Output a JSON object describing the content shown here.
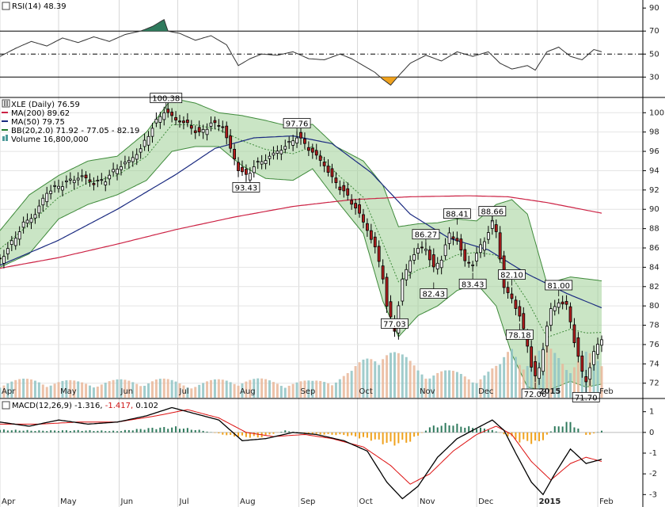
{
  "chart_data": {
    "type": "stock",
    "symbol_label": "XLE (Daily) 76.59",
    "price_axis": {
      "min": 70.5,
      "max": 101.5,
      "ticks": [
        72,
        74,
        76,
        78,
        80,
        82,
        84,
        86,
        88,
        90,
        92,
        94,
        96,
        98,
        100
      ]
    },
    "months": [
      {
        "label": "Apr",
        "day": 0
      },
      {
        "label": "May",
        "day": 30
      },
      {
        "label": "Jun",
        "day": 61
      },
      {
        "label": "Jul",
        "day": 91
      },
      {
        "label": "Aug",
        "day": 122
      },
      {
        "label": "Sep",
        "day": 153
      },
      {
        "label": "Oct",
        "day": 183
      },
      {
        "label": "Nov",
        "day": 214
      },
      {
        "label": "Dec",
        "day": 244
      },
      {
        "label": "2015",
        "day": 275
      },
      {
        "label": "Feb",
        "day": 306
      }
    ],
    "day_range": [
      0,
      302
    ],
    "price_path": [
      [
        0,
        84.8
      ],
      [
        6,
        86.5
      ],
      [
        12,
        88.5
      ],
      [
        18,
        89.5
      ],
      [
        24,
        91.8
      ],
      [
        30,
        92.4
      ],
      [
        36,
        93.0
      ],
      [
        42,
        93.4
      ],
      [
        48,
        92.7
      ],
      [
        54,
        93.1
      ],
      [
        60,
        94.3
      ],
      [
        66,
        95.0
      ],
      [
        72,
        96.2
      ],
      [
        78,
        98.5
      ],
      [
        84,
        100.2
      ],
      [
        90,
        99.3
      ],
      [
        96,
        98.8
      ],
      [
        102,
        97.8
      ],
      [
        108,
        98.9
      ],
      [
        114,
        98.6
      ],
      [
        118,
        96.2
      ],
      [
        122,
        94.2
      ],
      [
        126,
        93.4
      ],
      [
        130,
        94.5
      ],
      [
        136,
        95.2
      ],
      [
        142,
        96.0
      ],
      [
        148,
        96.8
      ],
      [
        152,
        97.6
      ],
      [
        158,
        96.3
      ],
      [
        162,
        95.5
      ],
      [
        166,
        94.6
      ],
      [
        170,
        93.2
      ],
      [
        176,
        91.8
      ],
      [
        182,
        90.2
      ],
      [
        188,
        87.9
      ],
      [
        192,
        86.0
      ],
      [
        196,
        83.0
      ],
      [
        198,
        80.0
      ],
      [
        200,
        78.6
      ],
      [
        202,
        77.5
      ],
      [
        204,
        80.2
      ],
      [
        206,
        82.6
      ],
      [
        210,
        84.8
      ],
      [
        214,
        85.9
      ],
      [
        218,
        86.0
      ],
      [
        222,
        83.8
      ],
      [
        226,
        85.0
      ],
      [
        230,
        87.4
      ],
      [
        234,
        86.8
      ],
      [
        238,
        84.6
      ],
      [
        242,
        84.4
      ],
      [
        246,
        86.2
      ],
      [
        250,
        87.6
      ],
      [
        252,
        88.6
      ],
      [
        254,
        87.8
      ],
      [
        256,
        85.0
      ],
      [
        258,
        81.8
      ],
      [
        262,
        80.8
      ],
      [
        266,
        78.9
      ],
      [
        270,
        76.0
      ],
      [
        272,
        73.8
      ],
      [
        274,
        72.5
      ],
      [
        276,
        73.6
      ],
      [
        280,
        77.8
      ],
      [
        282,
        79.6
      ],
      [
        286,
        80.4
      ],
      [
        290,
        80.0
      ],
      [
        292,
        78.4
      ],
      [
        294,
        76.4
      ],
      [
        296,
        74.6
      ],
      [
        298,
        73.1
      ],
      [
        300,
        72.4
      ],
      [
        302,
        73.6
      ],
      [
        304,
        75.1
      ],
      [
        306,
        76.1
      ],
      [
        308,
        76.6
      ]
    ],
    "callouts": [
      {
        "label": "100.38",
        "day": 85,
        "value": 100.38,
        "pos": "above"
      },
      {
        "label": "97.76",
        "day": 152,
        "value": 97.76,
        "pos": "above"
      },
      {
        "label": "93.43",
        "day": 126,
        "value": 93.43,
        "pos": "below"
      },
      {
        "label": "77.03",
        "day": 202,
        "value": 77.03,
        "pos": "above"
      },
      {
        "label": "86.27",
        "day": 218,
        "value": 86.27,
        "pos": "above"
      },
      {
        "label": "82.43",
        "day": 222,
        "value": 82.43,
        "pos": "below"
      },
      {
        "label": "88.41",
        "day": 234,
        "value": 88.41,
        "pos": "above"
      },
      {
        "label": "83.43",
        "day": 242,
        "value": 83.43,
        "pos": "below"
      },
      {
        "label": "88.66",
        "day": 252,
        "value": 88.66,
        "pos": "above"
      },
      {
        "label": "82.10",
        "day": 262,
        "value": 82.1,
        "pos": "above"
      },
      {
        "label": "78.18",
        "day": 266,
        "value": 78.18,
        "pos": "below"
      },
      {
        "label": "81.00",
        "day": 286,
        "value": 81.0,
        "pos": "above"
      },
      {
        "label": "72.06",
        "day": 274,
        "value": 72.06,
        "pos": "below"
      },
      {
        "label": "71.70",
        "day": 300,
        "value": 71.7,
        "pos": "below"
      }
    ],
    "ma200": [
      [
        0,
        83.9
      ],
      [
        30,
        85.0
      ],
      [
        60,
        86.4
      ],
      [
        90,
        87.9
      ],
      [
        120,
        89.2
      ],
      [
        150,
        90.3
      ],
      [
        180,
        91.0
      ],
      [
        210,
        91.3
      ],
      [
        240,
        91.4
      ],
      [
        260,
        91.3
      ],
      [
        280,
        90.7
      ],
      [
        308,
        89.6
      ]
    ],
    "ma50": [
      [
        0,
        84.2
      ],
      [
        30,
        86.8
      ],
      [
        60,
        90.0
      ],
      [
        90,
        93.6
      ],
      [
        110,
        96.3
      ],
      [
        130,
        97.4
      ],
      [
        150,
        97.6
      ],
      [
        170,
        96.8
      ],
      [
        190,
        93.8
      ],
      [
        210,
        89.5
      ],
      [
        230,
        87.0
      ],
      [
        250,
        85.8
      ],
      [
        270,
        83.3
      ],
      [
        290,
        81.3
      ],
      [
        308,
        79.8
      ]
    ],
    "bb_upper": [
      [
        0,
        87.8
      ],
      [
        15,
        91.5
      ],
      [
        30,
        93.5
      ],
      [
        45,
        95.0
      ],
      [
        60,
        95.5
      ],
      [
        75,
        98.0
      ],
      [
        88,
        101.5
      ],
      [
        100,
        101.0
      ],
      [
        112,
        100.0
      ],
      [
        124,
        99.7
      ],
      [
        136,
        99.2
      ],
      [
        150,
        98.5
      ],
      [
        160,
        98.8
      ],
      [
        172,
        96.5
      ],
      [
        186,
        95.0
      ],
      [
        196,
        92.5
      ],
      [
        204,
        88.2
      ],
      [
        214,
        88.5
      ],
      [
        224,
        88.6
      ],
      [
        234,
        89.0
      ],
      [
        244,
        88.8
      ],
      [
        254,
        90.5
      ],
      [
        262,
        91.0
      ],
      [
        270,
        89.5
      ],
      [
        280,
        82.3
      ],
      [
        292,
        83.0
      ],
      [
        300,
        82.8
      ],
      [
        308,
        82.6
      ]
    ],
    "bb_lower": [
      [
        0,
        84.0
      ],
      [
        15,
        85.4
      ],
      [
        30,
        89.0
      ],
      [
        45,
        90.5
      ],
      [
        60,
        91.5
      ],
      [
        75,
        93.0
      ],
      [
        88,
        96.0
      ],
      [
        100,
        96.5
      ],
      [
        112,
        96.5
      ],
      [
        124,
        94.5
      ],
      [
        136,
        93.2
      ],
      [
        150,
        93.0
      ],
      [
        160,
        94.2
      ],
      [
        172,
        91.0
      ],
      [
        186,
        87.5
      ],
      [
        196,
        80.5
      ],
      [
        204,
        76.8
      ],
      [
        214,
        79.0
      ],
      [
        224,
        80.0
      ],
      [
        234,
        81.6
      ],
      [
        244,
        82.3
      ],
      [
        254,
        80.0
      ],
      [
        262,
        75.0
      ],
      [
        270,
        71.6
      ],
      [
        280,
        71.2
      ],
      [
        292,
        72.2
      ],
      [
        300,
        71.6
      ],
      [
        308,
        71.9
      ]
    ],
    "volume_path": [
      [
        0,
        0.3
      ],
      [
        20,
        0.32
      ],
      [
        40,
        0.28
      ],
      [
        60,
        0.3
      ],
      [
        80,
        0.33
      ],
      [
        100,
        0.25
      ],
      [
        120,
        0.35
      ],
      [
        140,
        0.3
      ],
      [
        160,
        0.28
      ],
      [
        180,
        0.45
      ],
      [
        196,
        1.0
      ],
      [
        204,
        0.75
      ],
      [
        214,
        0.55
      ],
      [
        230,
        0.45
      ],
      [
        244,
        0.4
      ],
      [
        256,
        0.55
      ],
      [
        262,
        0.95
      ],
      [
        270,
        0.75
      ],
      [
        280,
        0.85
      ],
      [
        290,
        0.7
      ],
      [
        300,
        0.8
      ],
      [
        308,
        0.55
      ]
    ],
    "legend": [
      {
        "text": "XLE (Daily) 76.59",
        "color": "#000000",
        "marker": "candle"
      },
      {
        "text": "MA(200) 89.62",
        "color": "#cc2244",
        "marker": "line"
      },
      {
        "text": "MA(50) 79.75",
        "color": "#1a2a80",
        "marker": "line"
      },
      {
        "text": "BB(20,2.0) 71.92 - 77.05 - 82.19",
        "color": "#1f7a2a",
        "marker": "line"
      },
      {
        "text": "Volume 16,800,000",
        "color": "#4c9a9a",
        "marker": "bar"
      }
    ],
    "rsi": {
      "label": "RSI(14) 48.39",
      "axis_ticks": [
        30,
        50,
        70,
        90
      ],
      "levels": [
        30,
        50,
        70
      ],
      "range": [
        13,
        97
      ],
      "path": [
        [
          0,
          48
        ],
        [
          8,
          55
        ],
        [
          16,
          61
        ],
        [
          24,
          57
        ],
        [
          32,
          64
        ],
        [
          40,
          60
        ],
        [
          48,
          65
        ],
        [
          56,
          61
        ],
        [
          64,
          67
        ],
        [
          72,
          70
        ],
        [
          78,
          74
        ],
        [
          82,
          78
        ],
        [
          84,
          80
        ],
        [
          86,
          70
        ],
        [
          92,
          68
        ],
        [
          100,
          62
        ],
        [
          108,
          66
        ],
        [
          116,
          58
        ],
        [
          122,
          40
        ],
        [
          128,
          46
        ],
        [
          134,
          50
        ],
        [
          142,
          49
        ],
        [
          150,
          52
        ],
        [
          158,
          46
        ],
        [
          166,
          45
        ],
        [
          174,
          50
        ],
        [
          180,
          46
        ],
        [
          186,
          40
        ],
        [
          192,
          34
        ],
        [
          196,
          28
        ],
        [
          200,
          23
        ],
        [
          204,
          31
        ],
        [
          210,
          42
        ],
        [
          218,
          49
        ],
        [
          226,
          44
        ],
        [
          234,
          52
        ],
        [
          242,
          48
        ],
        [
          250,
          52
        ],
        [
          256,
          42
        ],
        [
          262,
          37
        ],
        [
          270,
          40
        ],
        [
          274,
          36
        ],
        [
          280,
          52
        ],
        [
          286,
          56
        ],
        [
          292,
          48
        ],
        [
          298,
          45
        ],
        [
          304,
          54
        ],
        [
          308,
          52
        ]
      ]
    },
    "macd": {
      "label_main": "MACD(12,26,9) -1.316,",
      "label_signal": "-1.417,",
      "label_hist": "0.102",
      "axis_ticks": [
        1,
        0,
        -1,
        -2,
        -3
      ],
      "range": [
        -3.6,
        1.6
      ],
      "macd_path": [
        [
          0,
          0.5
        ],
        [
          15,
          0.3
        ],
        [
          30,
          0.6
        ],
        [
          45,
          0.4
        ],
        [
          60,
          0.5
        ],
        [
          75,
          0.8
        ],
        [
          88,
          1.2
        ],
        [
          100,
          0.9
        ],
        [
          112,
          0.6
        ],
        [
          124,
          -0.4
        ],
        [
          136,
          -0.3
        ],
        [
          150,
          0.0
        ],
        [
          162,
          -0.1
        ],
        [
          176,
          -0.4
        ],
        [
          188,
          -0.9
        ],
        [
          198,
          -2.4
        ],
        [
          206,
          -3.2
        ],
        [
          214,
          -2.6
        ],
        [
          224,
          -1.2
        ],
        [
          234,
          -0.3
        ],
        [
          244,
          0.2
        ],
        [
          252,
          0.6
        ],
        [
          258,
          0.1
        ],
        [
          264,
          -1.0
        ],
        [
          272,
          -2.4
        ],
        [
          278,
          -3.0
        ],
        [
          284,
          -2.0
        ],
        [
          292,
          -0.8
        ],
        [
          300,
          -1.5
        ],
        [
          308,
          -1.3
        ]
      ],
      "signal_path": [
        [
          0,
          0.4
        ],
        [
          20,
          0.4
        ],
        [
          40,
          0.5
        ],
        [
          60,
          0.5
        ],
        [
          80,
          0.8
        ],
        [
          96,
          1.1
        ],
        [
          112,
          0.7
        ],
        [
          126,
          0.0
        ],
        [
          140,
          -0.2
        ],
        [
          156,
          -0.1
        ],
        [
          170,
          -0.3
        ],
        [
          186,
          -0.7
        ],
        [
          200,
          -1.6
        ],
        [
          210,
          -2.5
        ],
        [
          220,
          -2.0
        ],
        [
          232,
          -0.9
        ],
        [
          244,
          -0.1
        ],
        [
          254,
          0.3
        ],
        [
          262,
          -0.1
        ],
        [
          272,
          -1.4
        ],
        [
          282,
          -2.3
        ],
        [
          292,
          -1.5
        ],
        [
          300,
          -1.2
        ],
        [
          308,
          -1.4
        ]
      ],
      "hist_path": [
        [
          0,
          0.15
        ],
        [
          20,
          0.1
        ],
        [
          40,
          0.12
        ],
        [
          60,
          0.08
        ],
        [
          78,
          0.25
        ],
        [
          90,
          0.3
        ],
        [
          104,
          0.1
        ],
        [
          118,
          -0.2
        ],
        [
          132,
          -0.3
        ],
        [
          146,
          0.1
        ],
        [
          160,
          -0.1
        ],
        [
          176,
          -0.15
        ],
        [
          190,
          -0.4
        ],
        [
          200,
          -0.7
        ],
        [
          210,
          -0.5
        ],
        [
          220,
          0.3
        ],
        [
          230,
          0.5
        ],
        [
          240,
          0.3
        ],
        [
          250,
          0.2
        ],
        [
          258,
          -0.1
        ],
        [
          266,
          -0.5
        ],
        [
          276,
          -0.6
        ],
        [
          284,
          0.3
        ],
        [
          292,
          0.6
        ],
        [
          300,
          -0.2
        ],
        [
          308,
          0.1
        ]
      ]
    }
  }
}
